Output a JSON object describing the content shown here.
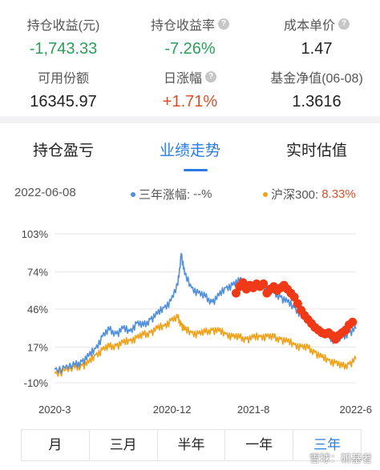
{
  "stats": [
    {
      "label": "持仓收益(元)",
      "value": "-1,743.33",
      "tone": "green",
      "help": false
    },
    {
      "label": "持仓收益率",
      "value": "-7.26%",
      "tone": "green",
      "help": true
    },
    {
      "label": "成本单价",
      "value": "1.47",
      "tone": "normal",
      "help": true
    },
    {
      "label": "可用份额",
      "value": "16345.97",
      "tone": "normal",
      "help": false
    },
    {
      "label": "日涨幅",
      "value": "+1.71%",
      "tone": "red",
      "help": true
    },
    {
      "label": "基金净值(06-08)",
      "value": "1.3616",
      "tone": "normal",
      "help": false
    }
  ],
  "tabs": [
    {
      "label": "持仓盈亏",
      "active": false
    },
    {
      "label": "业绩走势",
      "active": true
    },
    {
      "label": "实时估值",
      "active": false
    }
  ],
  "legend": {
    "date": "2022-06-08",
    "series1_label": "三年涨幅:",
    "series1_value": "--%",
    "series2_label": "沪深300:",
    "series2_value": "8.33%"
  },
  "colors": {
    "fund": "#4f8fdd",
    "index": "#f0a11c",
    "marker": "#f03a17",
    "active": "#2c7be5",
    "gain": "#d8502a",
    "loss": "#2c9d5a"
  },
  "chart_data": {
    "type": "line",
    "y_ticks": [
      "103%",
      "74%",
      "46%",
      "17%",
      "-10%"
    ],
    "y_tick_values": [
      103,
      74,
      46,
      17,
      -10
    ],
    "x_ticks": [
      "2020-3",
      "2020-12",
      "2021-8",
      "2022-6"
    ],
    "ylim": [
      -10,
      103
    ],
    "grid": true,
    "series": [
      {
        "key": "fund",
        "points": [
          [
            0,
            0
          ],
          [
            3,
            1
          ],
          [
            6,
            3
          ],
          [
            8,
            6
          ],
          [
            10,
            10
          ],
          [
            12,
            16
          ],
          [
            14,
            25
          ],
          [
            16,
            30
          ],
          [
            18,
            27
          ],
          [
            20,
            31
          ],
          [
            22,
            29
          ],
          [
            24,
            35
          ],
          [
            26,
            33
          ],
          [
            28,
            38
          ],
          [
            30,
            42
          ],
          [
            32,
            47
          ],
          [
            34,
            52
          ],
          [
            36,
            64
          ],
          [
            37,
            88
          ],
          [
            38,
            72
          ],
          [
            40,
            62
          ],
          [
            42,
            58
          ],
          [
            44,
            55
          ],
          [
            46,
            51
          ],
          [
            48,
            56
          ],
          [
            50,
            62
          ],
          [
            52,
            64
          ],
          [
            54,
            67
          ],
          [
            56,
            65
          ],
          [
            58,
            63
          ],
          [
            60,
            65
          ],
          [
            62,
            61
          ],
          [
            64,
            58
          ],
          [
            66,
            55
          ],
          [
            68,
            51
          ],
          [
            70,
            47
          ],
          [
            72,
            42
          ],
          [
            74,
            37
          ],
          [
            76,
            33
          ],
          [
            78,
            29
          ],
          [
            80,
            25
          ],
          [
            82,
            22
          ],
          [
            84,
            24
          ],
          [
            86,
            28
          ],
          [
            88,
            31
          ]
        ]
      },
      {
        "key": "index",
        "points": [
          [
            0,
            -3
          ],
          [
            3,
            -1
          ],
          [
            6,
            1
          ],
          [
            8,
            3
          ],
          [
            10,
            5
          ],
          [
            12,
            11
          ],
          [
            14,
            15
          ],
          [
            16,
            17
          ],
          [
            18,
            18
          ],
          [
            20,
            20
          ],
          [
            22,
            22
          ],
          [
            24,
            24
          ],
          [
            26,
            26
          ],
          [
            28,
            28
          ],
          [
            30,
            31
          ],
          [
            32,
            33
          ],
          [
            34,
            37
          ],
          [
            36,
            39
          ],
          [
            37,
            34
          ],
          [
            38,
            30
          ],
          [
            40,
            28
          ],
          [
            42,
            27
          ],
          [
            44,
            28
          ],
          [
            46,
            30
          ],
          [
            48,
            29
          ],
          [
            50,
            27
          ],
          [
            52,
            25
          ],
          [
            54,
            24
          ],
          [
            56,
            23
          ],
          [
            58,
            24
          ],
          [
            60,
            25
          ],
          [
            62,
            25
          ],
          [
            64,
            24
          ],
          [
            66,
            23
          ],
          [
            68,
            21
          ],
          [
            70,
            19
          ],
          [
            72,
            17
          ],
          [
            74,
            16
          ],
          [
            76,
            13
          ],
          [
            78,
            9
          ],
          [
            80,
            7
          ],
          [
            82,
            5
          ],
          [
            84,
            2
          ],
          [
            86,
            4
          ],
          [
            88,
            8
          ]
        ]
      }
    ],
    "markers": [
      [
        53,
        58
      ],
      [
        54,
        63
      ],
      [
        55,
        66
      ],
      [
        56,
        61
      ],
      [
        57,
        64
      ],
      [
        58,
        62
      ],
      [
        59,
        65
      ],
      [
        60,
        63
      ],
      [
        61,
        65
      ],
      [
        62,
        58
      ],
      [
        63,
        61
      ],
      [
        64,
        63
      ],
      [
        65,
        60
      ],
      [
        66,
        62
      ],
      [
        67,
        64
      ],
      [
        68,
        61
      ],
      [
        69,
        58
      ],
      [
        70,
        55
      ],
      [
        71,
        50
      ],
      [
        72,
        45
      ],
      [
        73,
        41
      ],
      [
        74,
        38
      ],
      [
        75,
        35
      ],
      [
        76,
        32
      ],
      [
        77,
        30
      ],
      [
        78,
        28
      ],
      [
        79,
        27
      ],
      [
        80,
        28
      ],
      [
        81,
        26
      ],
      [
        82,
        23
      ],
      [
        83,
        26
      ],
      [
        84,
        28
      ],
      [
        85,
        30
      ],
      [
        86,
        34
      ],
      [
        87,
        36
      ]
    ],
    "x_max": 88
  },
  "ranges": [
    {
      "label": "月",
      "active": false
    },
    {
      "label": "三月",
      "active": false
    },
    {
      "label": "半年",
      "active": false
    },
    {
      "label": "一年",
      "active": false
    },
    {
      "label": "三年",
      "active": true
    }
  ],
  "watermark": "雪球：研基者"
}
